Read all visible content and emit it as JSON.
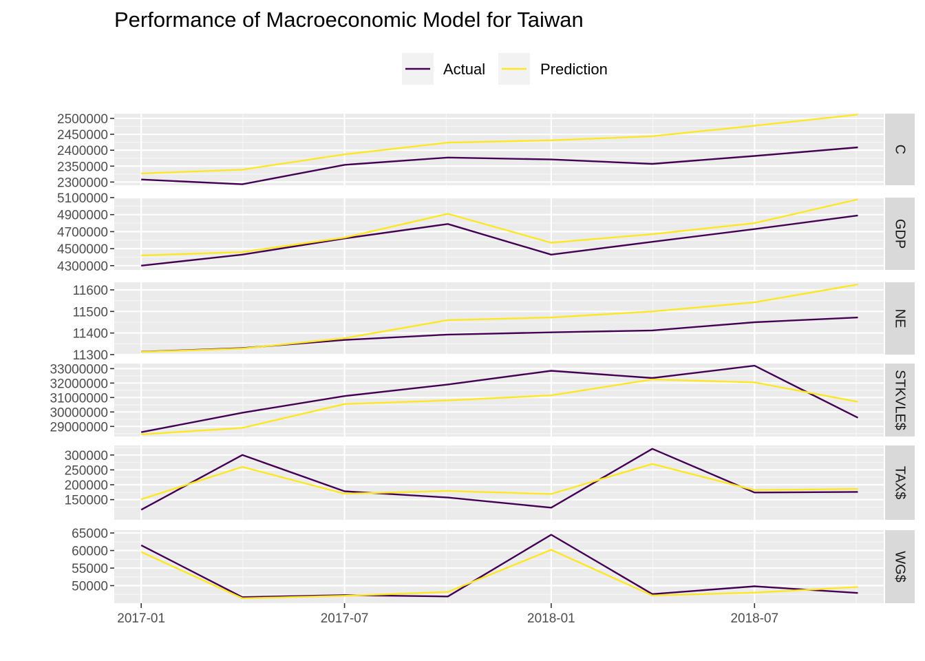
{
  "chart_data": {
    "type": "line",
    "title": "Performance of Macroeconomic Model for Taiwan",
    "legend_position": "top",
    "colors": {
      "Actual": "#440154",
      "Prediction": "#FDE725"
    },
    "x": [
      "2017-01-01",
      "2017-04-01",
      "2017-07-01",
      "2017-10-01",
      "2018-01-01",
      "2018-04-01",
      "2018-07-01",
      "2018-10-01"
    ],
    "x_ticks": [
      "2017-01",
      "2017-07",
      "2018-01",
      "2018-07"
    ],
    "x_tick_dates": [
      "2017-01-01",
      "2017-07-01",
      "2018-01-01",
      "2018-07-01"
    ],
    "xlim": [
      "2016-12-08",
      "2018-10-24"
    ],
    "series_names": [
      "Actual",
      "Prediction"
    ],
    "panels": [
      {
        "label": "C",
        "ylim": [
          2290000,
          2515000
        ],
        "y_ticks": [
          2300000,
          2350000,
          2400000,
          2450000,
          2500000
        ],
        "series": [
          {
            "name": "Actual",
            "values": [
              2308000,
              2293000,
              2354000,
              2377000,
              2371000,
              2357000,
              2382000,
              2409000
            ]
          },
          {
            "name": "Prediction",
            "values": [
              2327000,
              2339000,
              2387000,
              2424000,
              2431000,
              2444000,
              2477000,
              2512000
            ]
          }
        ]
      },
      {
        "label": "GDP",
        "ylim": [
          4250000,
          5100000
        ],
        "y_ticks": [
          4300000,
          4500000,
          4700000,
          4900000,
          5100000
        ],
        "series": [
          {
            "name": "Actual",
            "values": [
              4300000,
              4430000,
              4620000,
              4790000,
              4430000,
              4580000,
              4730000,
              4890000
            ]
          },
          {
            "name": "Prediction",
            "values": [
              4420000,
              4460000,
              4630000,
              4910000,
              4570000,
              4670000,
              4800000,
              5080000
            ]
          }
        ]
      },
      {
        "label": "NE",
        "ylim": [
          11300,
          11635
        ],
        "y_ticks": [
          11300,
          11400,
          11500,
          11600
        ],
        "series": [
          {
            "name": "Actual",
            "values": [
              11313,
              11330,
              11368,
              11393,
              11403,
              11412,
              11450,
              11472
            ]
          },
          {
            "name": "Prediction",
            "values": [
              11312,
              11328,
              11376,
              11460,
              11472,
              11500,
              11542,
              11625
            ]
          }
        ]
      },
      {
        "label": "STKVLE$",
        "ylim": [
          28300000,
          33350000
        ],
        "y_ticks": [
          29000000,
          30000000,
          31000000,
          32000000,
          33000000
        ],
        "series": [
          {
            "name": "Actual",
            "values": [
              28600000,
              29950000,
              31100000,
              31900000,
              32850000,
              32350000,
              33200000,
              29600000
            ]
          },
          {
            "name": "Prediction",
            "values": [
              28450000,
              28900000,
              30550000,
              30800000,
              31150000,
              32250000,
              32050000,
              30700000
            ]
          }
        ]
      },
      {
        "label": "TAX$",
        "ylim": [
          82000,
          332000
        ],
        "y_ticks": [
          150000,
          200000,
          250000,
          300000
        ],
        "series": [
          {
            "name": "Actual",
            "values": [
              116000,
              300000,
              178000,
              157000,
              123000,
              321000,
              174000,
              176000
            ]
          },
          {
            "name": "Prediction",
            "values": [
              151000,
              260000,
              170000,
              179000,
              169000,
              270000,
              182000,
              186000
            ]
          }
        ]
      },
      {
        "label": "WG$",
        "ylim": [
          45000,
          65800
        ],
        "y_ticks": [
          50000,
          55000,
          60000,
          65000
        ],
        "series": [
          {
            "name": "Actual",
            "values": [
              61500,
              46700,
              47300,
              46900,
              64500,
              47600,
              49800,
              47900
            ]
          },
          {
            "name": "Prediction",
            "values": [
              59600,
              46400,
              47100,
              48200,
              60200,
              47200,
              48000,
              49600
            ]
          }
        ]
      }
    ]
  }
}
